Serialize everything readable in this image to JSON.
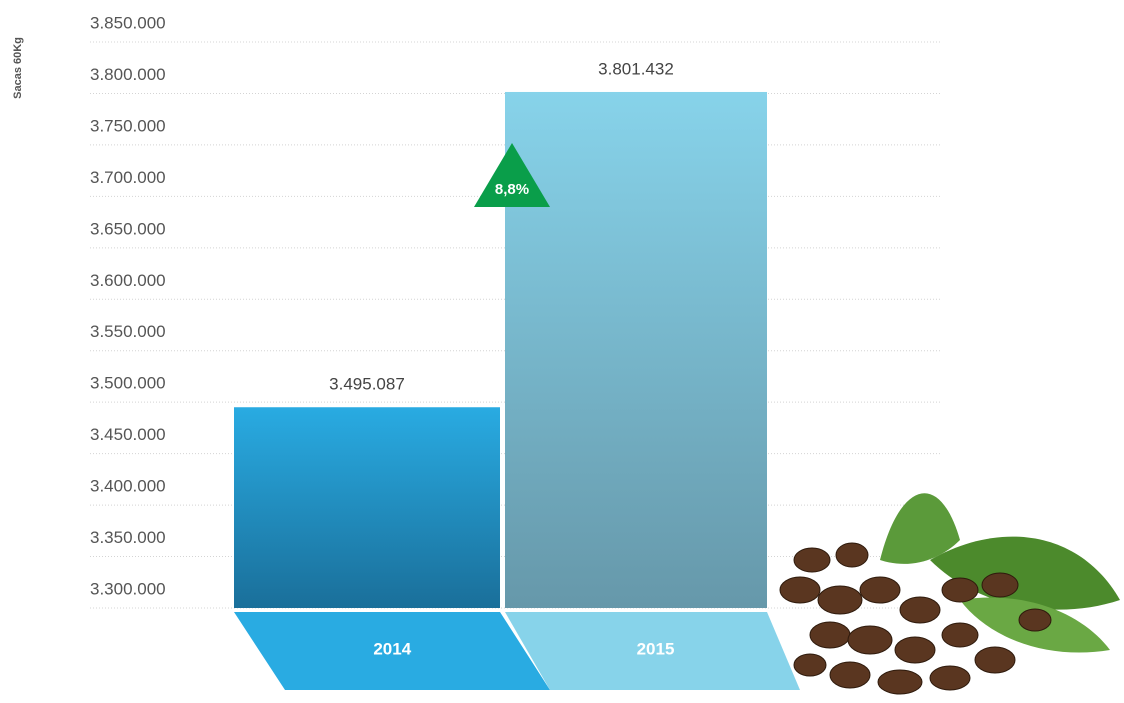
{
  "chart_data": {
    "type": "bar",
    "y_label": "Sacas 60Kg",
    "categories": [
      "2014",
      "2015"
    ],
    "values": [
      3495087,
      3801432
    ],
    "value_labels": [
      "3.495.087",
      "3.801.432"
    ],
    "colors": [
      "#29abe2",
      "#87d3ea"
    ],
    "annotations": [
      {
        "text": "8,8%",
        "color": "#0a9e4a"
      }
    ],
    "ylim": [
      3300000,
      3850000
    ],
    "yticks": [
      {
        "value": 3300000,
        "label": "3.300.000"
      },
      {
        "value": 3350000,
        "label": "3.350.000"
      },
      {
        "value": 3400000,
        "label": "3.400.000"
      },
      {
        "value": 3450000,
        "label": "3.450.000"
      },
      {
        "value": 3500000,
        "label": "3.500.000"
      },
      {
        "value": 3550000,
        "label": "3.550.000"
      },
      {
        "value": 3600000,
        "label": "3.600.000"
      },
      {
        "value": 3650000,
        "label": "3.650.000"
      },
      {
        "value": 3700000,
        "label": "3.700.000"
      },
      {
        "value": 3750000,
        "label": "3.750.000"
      },
      {
        "value": 3800000,
        "label": "3.800.000"
      },
      {
        "value": 3850000,
        "label": "3.850.000"
      }
    ],
    "grid": true
  }
}
